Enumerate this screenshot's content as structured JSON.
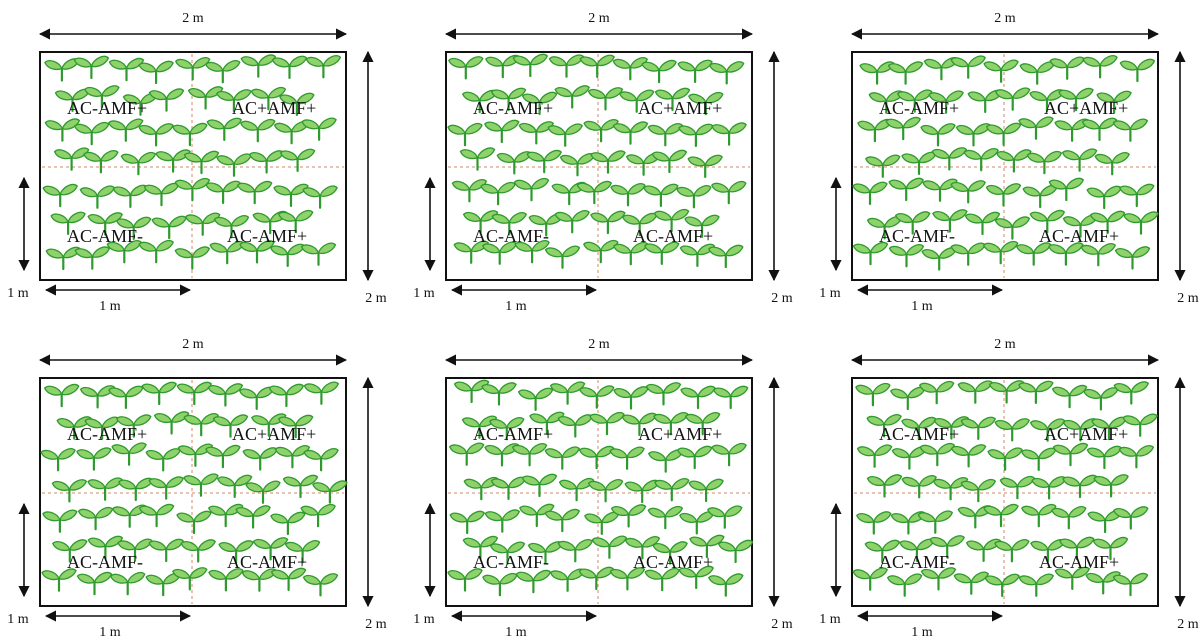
{
  "panels": [
    {
      "width_label": "2 m",
      "height_label": "2 m",
      "sub_width_label": "1 m",
      "sub_height_label": "1 m",
      "quadrants": {
        "top_left": "AC-AMF+",
        "top_right": "AC+AMF+",
        "bottom_left": "AC-AMF-",
        "bottom_right": "AC-AMF+"
      }
    },
    {
      "width_label": "2 m",
      "height_label": "2 m",
      "sub_width_label": "1 m",
      "sub_height_label": "1 m",
      "quadrants": {
        "top_left": "AC-AMF+",
        "top_right": "AC+AMF+",
        "bottom_left": "AC-AMF-",
        "bottom_right": "AC-AMF+"
      }
    },
    {
      "width_label": "2 m",
      "height_label": "2 m",
      "sub_width_label": "1 m",
      "sub_height_label": "1 m",
      "quadrants": {
        "top_left": "AC-AMF+",
        "top_right": "AC+AMF+",
        "bottom_left": "AC-AMF-",
        "bottom_right": "AC-AMF+"
      }
    },
    {
      "width_label": "2 m",
      "height_label": "2 m",
      "sub_width_label": "1 m",
      "sub_height_label": "1 m",
      "quadrants": {
        "top_left": "AC-AMF+",
        "top_right": "AC+AMF+",
        "bottom_left": "AC-AMF-",
        "bottom_right": "AC-AMF+"
      }
    },
    {
      "width_label": "2 m",
      "height_label": "2 m",
      "sub_width_label": "1 m",
      "sub_height_label": "1 m",
      "quadrants": {
        "top_left": "AC-AMF+",
        "top_right": "AC+AMF+",
        "bottom_left": "AC-AMF-",
        "bottom_right": "AC-AMF+"
      }
    },
    {
      "width_label": "2 m",
      "height_label": "2 m",
      "sub_width_label": "1 m",
      "sub_height_label": "1 m",
      "quadrants": {
        "top_left": "AC-AMF+",
        "top_right": "AC+AMF+",
        "bottom_left": "AC-AMF-",
        "bottom_right": "AC-AMF+"
      }
    }
  ],
  "icons": {
    "plant": "seedling-icon"
  },
  "colors": {
    "leaf_fill": "#8fd16a",
    "leaf_stroke": "#2e9a2e",
    "stem": "#2e9a2e",
    "divider": "#d08a6a",
    "border": "#111111",
    "arrow": "#111111"
  }
}
